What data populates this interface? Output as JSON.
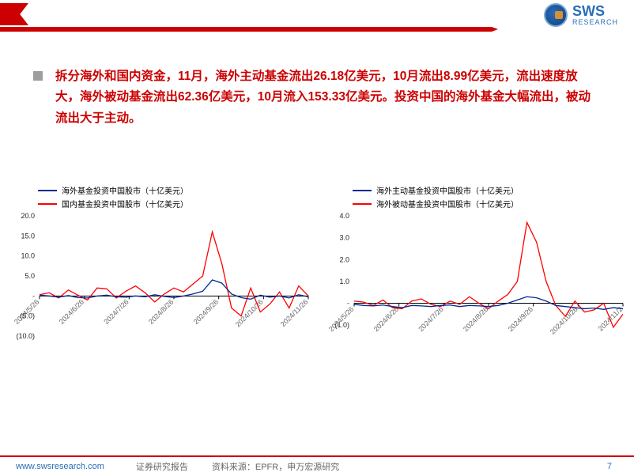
{
  "logo": {
    "main": "SWS",
    "sub": "RESEARCH"
  },
  "summary": {
    "prefix": "拆分海外和国内资金，11月，海外主动基金流出26.18亿美元，10月流出8.99亿美元，流出速度放大，海外被动基金流出62.36亿美元，10月流入153.33亿美元。投资中国的海外基金大幅流出，被动流出大于主动。"
  },
  "chart_left": {
    "type": "line",
    "legend": [
      {
        "label": "海外基金投资中国股市（十亿美元）",
        "color": "#002a8f"
      },
      {
        "label": "国内基金投资中国股市（十亿美元）",
        "color": "#ff0000"
      }
    ],
    "ylim": [
      -10,
      20
    ],
    "yticks": [
      -10,
      -5,
      0,
      5,
      10,
      15,
      20
    ],
    "ytick_labels": [
      "(10.0)",
      "(5.0)",
      "-",
      "5.0",
      "10.0",
      "15.0",
      "20.0"
    ],
    "xticks": [
      "2024/5/26",
      "2024/6/26",
      "2024/7/26",
      "2024/8/26",
      "2024/9/26",
      "2024/10/26",
      "2024/11/26"
    ],
    "background_color": "#ffffff",
    "line_width": 1.3,
    "series": {
      "overseas": [
        0.2,
        0.0,
        -0.3,
        0.1,
        -0.4,
        -0.5,
        0.0,
        0.2,
        -0.2,
        -0.3,
        0.0,
        -0.2,
        0.3,
        -0.1,
        -0.4,
        0.0,
        0.5,
        1.2,
        4.0,
        3.2,
        0.5,
        -0.4,
        -0.8,
        0.2,
        -0.3,
        0.0,
        -0.5,
        0.3,
        -0.2
      ],
      "domestic": [
        0.3,
        0.8,
        -0.5,
        1.5,
        0.2,
        -1.0,
        2.0,
        1.8,
        -0.5,
        1.2,
        2.5,
        0.8,
        -1.5,
        0.5,
        2.0,
        1.0,
        3.0,
        5.0,
        16.0,
        8.0,
        -3.0,
        -5.0,
        2.0,
        -4.0,
        -2.0,
        1.0,
        -3.0,
        2.5,
        0.0
      ]
    }
  },
  "chart_right": {
    "type": "line",
    "legend": [
      {
        "label": "海外主动基金投资中国股市（十亿美元）",
        "color": "#002a8f"
      },
      {
        "label": "海外被动基金投资中国股市（十亿美元）",
        "color": "#ff0000"
      }
    ],
    "ylim": [
      -1.5,
      4
    ],
    "yticks": [
      -1.5,
      -1,
      -0.5,
      0,
      0.5,
      1,
      1.5,
      2,
      2.5,
      3,
      3.5,
      4
    ],
    "ytick_labels": [
      "",
      "(1.0)",
      "",
      "-",
      "",
      "1.0",
      "",
      "2.0",
      "",
      "3.0",
      "",
      "4.0"
    ],
    "xticks": [
      "2024/5/26",
      "2024/6/26",
      "2024/7/26",
      "2024/8/26",
      "2024/9/26",
      "2024/10/26",
      "2024/11/2"
    ],
    "background_color": "#ffffff",
    "line_width": 1.3,
    "series": {
      "active": [
        -0.05,
        -0.1,
        -0.12,
        -0.08,
        -0.15,
        -0.2,
        -0.1,
        -0.12,
        -0.15,
        -0.1,
        -0.08,
        -0.15,
        -0.1,
        -0.12,
        -0.15,
        -0.1,
        0.0,
        0.15,
        0.3,
        0.25,
        0.1,
        -0.1,
        -0.15,
        -0.2,
        -0.25,
        -0.22,
        -0.28,
        -0.2,
        -0.25
      ],
      "passive": [
        0.1,
        0.05,
        -0.1,
        0.15,
        -0.2,
        -0.25,
        0.1,
        0.2,
        -0.05,
        -0.15,
        0.1,
        -0.05,
        0.3,
        0.0,
        -0.25,
        0.1,
        0.4,
        1.0,
        3.7,
        2.8,
        1.0,
        -0.1,
        -0.6,
        0.1,
        -0.4,
        -0.3,
        0.0,
        -1.1,
        -0.5
      ]
    }
  },
  "footer": {
    "url": "www.swsresearch.com",
    "label": "证券研究报告",
    "source": "资料来源：EPFR，申万宏源研究",
    "page": "7"
  }
}
